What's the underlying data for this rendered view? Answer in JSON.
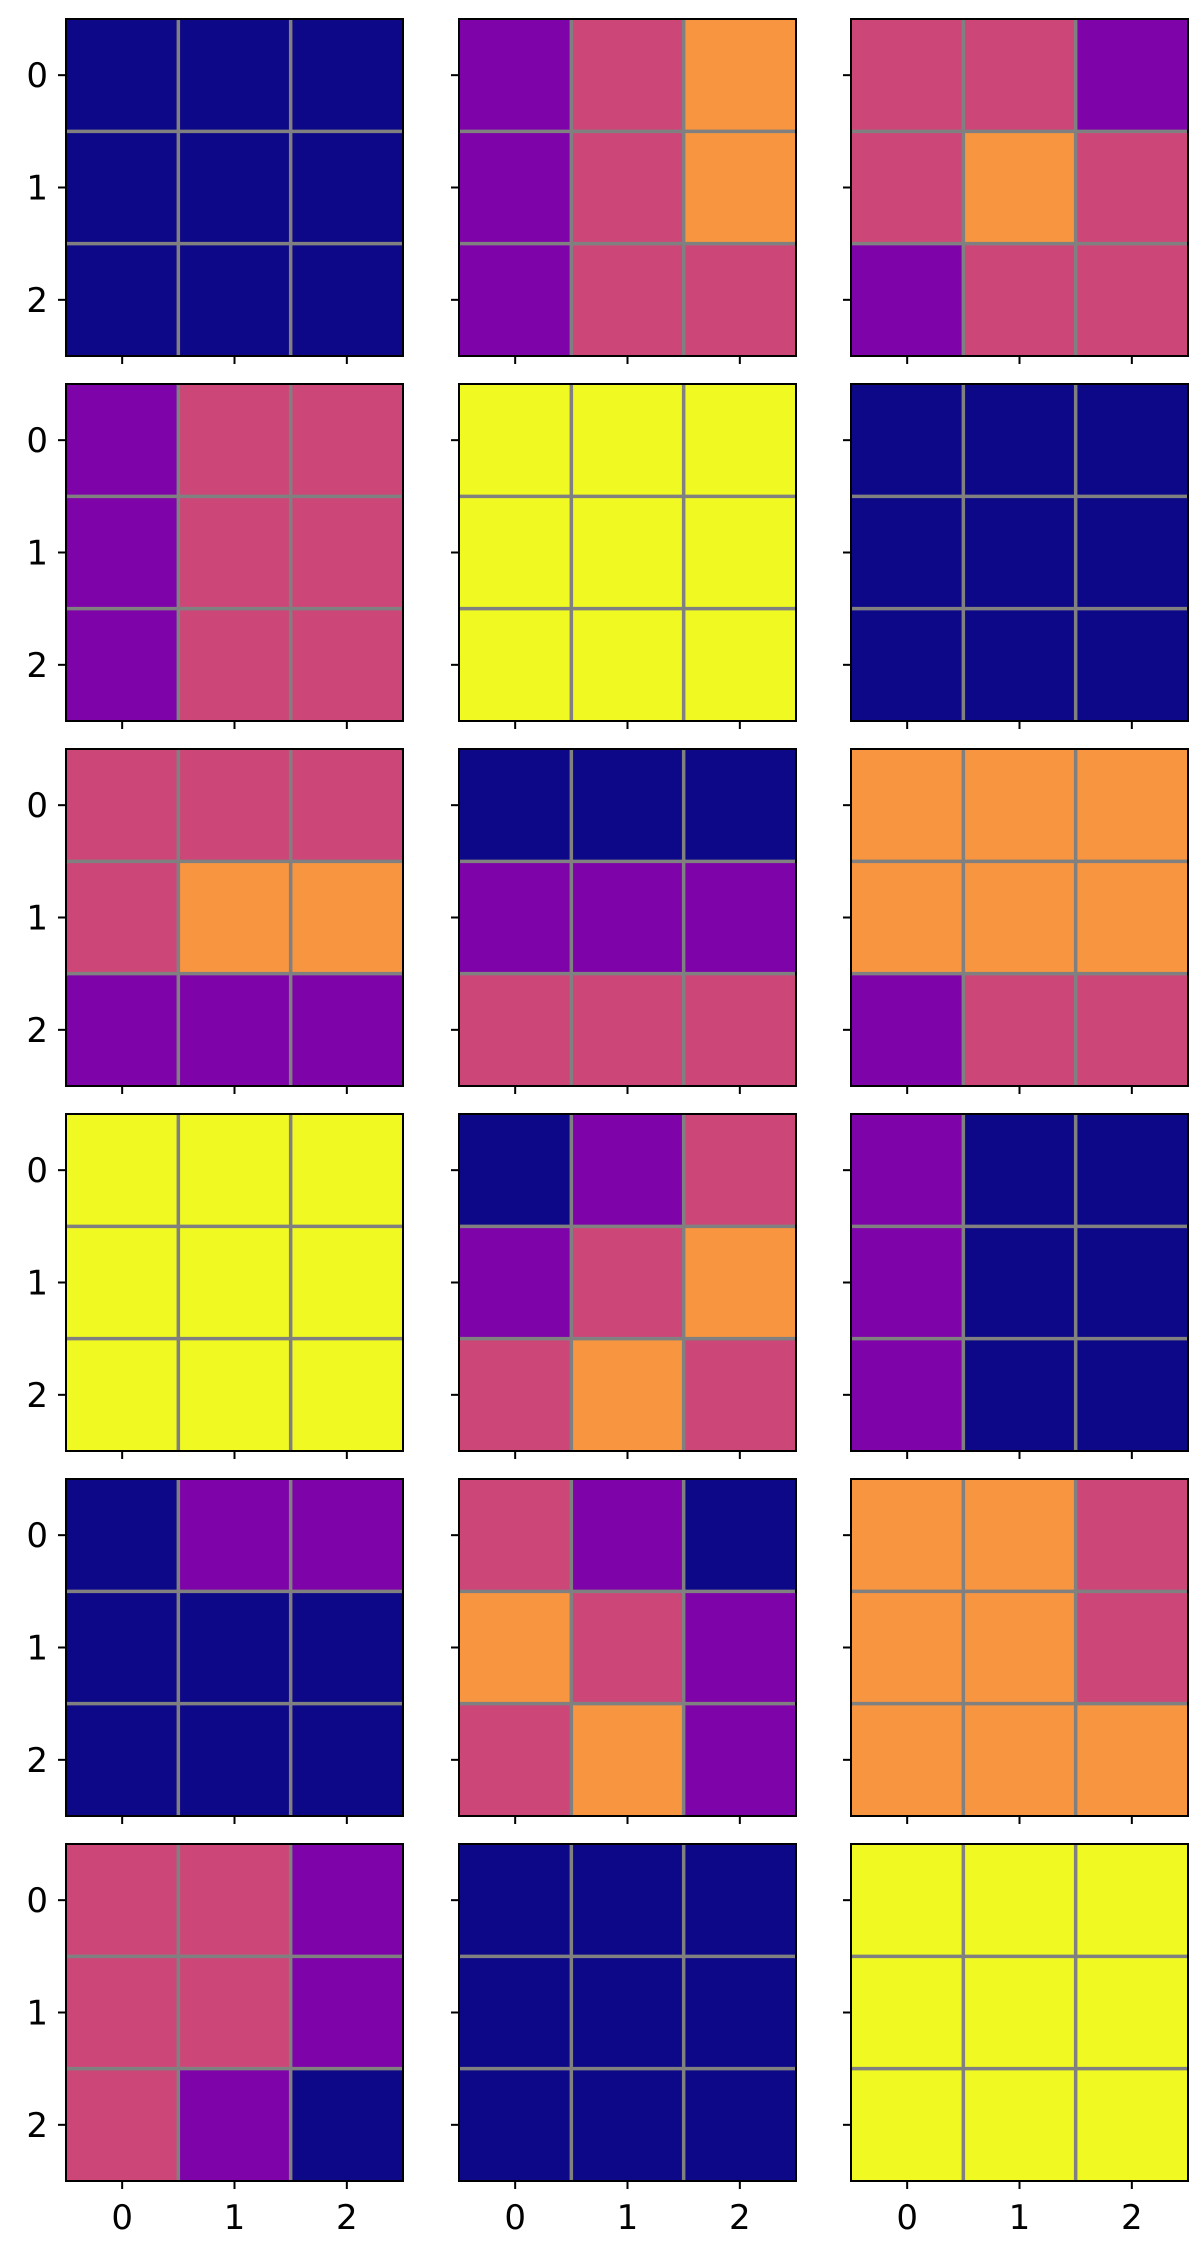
{
  "chart_data": {
    "type": "heatmap",
    "layout": {
      "rows": 6,
      "cols": 3,
      "sharex": true,
      "sharey": true
    },
    "colormap": "plasma",
    "gridline_color": "#808080",
    "grid": true,
    "x_ticks": [
      "0",
      "1",
      "2"
    ],
    "y_ticks": [
      "0",
      "1",
      "2"
    ],
    "palette": {
      "0": "#0d0887",
      "1": "#7e03a8",
      "2": "#cc4778",
      "3": "#f89540",
      "4": "#f0f921"
    },
    "panels": [
      {
        "values": [
          [
            0,
            0,
            0
          ],
          [
            0,
            0,
            0
          ],
          [
            0,
            0,
            0
          ]
        ]
      },
      {
        "values": [
          [
            1,
            2,
            3
          ],
          [
            1,
            2,
            3
          ],
          [
            1,
            2,
            2
          ]
        ]
      },
      {
        "values": [
          [
            2,
            2,
            1
          ],
          [
            2,
            3,
            2
          ],
          [
            1,
            2,
            2
          ]
        ]
      },
      {
        "values": [
          [
            1,
            2,
            2
          ],
          [
            1,
            2,
            2
          ],
          [
            1,
            2,
            2
          ]
        ]
      },
      {
        "values": [
          [
            4,
            4,
            4
          ],
          [
            4,
            4,
            4
          ],
          [
            4,
            4,
            4
          ]
        ]
      },
      {
        "values": [
          [
            0,
            0,
            0
          ],
          [
            0,
            0,
            0
          ],
          [
            0,
            0,
            0
          ]
        ]
      },
      {
        "values": [
          [
            2,
            2,
            2
          ],
          [
            2,
            3,
            3
          ],
          [
            1,
            1,
            1
          ]
        ]
      },
      {
        "values": [
          [
            0,
            0,
            0
          ],
          [
            1,
            1,
            1
          ],
          [
            2,
            2,
            2
          ]
        ]
      },
      {
        "values": [
          [
            3,
            3,
            3
          ],
          [
            3,
            3,
            3
          ],
          [
            1,
            2,
            2
          ]
        ]
      },
      {
        "values": [
          [
            4,
            4,
            4
          ],
          [
            4,
            4,
            4
          ],
          [
            4,
            4,
            4
          ]
        ]
      },
      {
        "values": [
          [
            0,
            1,
            2
          ],
          [
            1,
            2,
            3
          ],
          [
            2,
            3,
            2
          ]
        ]
      },
      {
        "values": [
          [
            1,
            0,
            0
          ],
          [
            1,
            0,
            0
          ],
          [
            1,
            0,
            0
          ]
        ]
      },
      {
        "values": [
          [
            0,
            1,
            1
          ],
          [
            0,
            0,
            0
          ],
          [
            0,
            0,
            0
          ]
        ]
      },
      {
        "values": [
          [
            2,
            1,
            0
          ],
          [
            3,
            2,
            1
          ],
          [
            2,
            3,
            1
          ]
        ]
      },
      {
        "values": [
          [
            3,
            3,
            2
          ],
          [
            3,
            3,
            2
          ],
          [
            3,
            3,
            3
          ]
        ]
      },
      {
        "values": [
          [
            2,
            2,
            1
          ],
          [
            2,
            2,
            1
          ],
          [
            2,
            1,
            0
          ]
        ]
      },
      {
        "values": [
          [
            0,
            0,
            0
          ],
          [
            0,
            0,
            0
          ],
          [
            0,
            0,
            0
          ]
        ]
      },
      {
        "values": [
          [
            4,
            4,
            4
          ],
          [
            4,
            4,
            4
          ],
          [
            4,
            4,
            4
          ]
        ]
      }
    ]
  }
}
